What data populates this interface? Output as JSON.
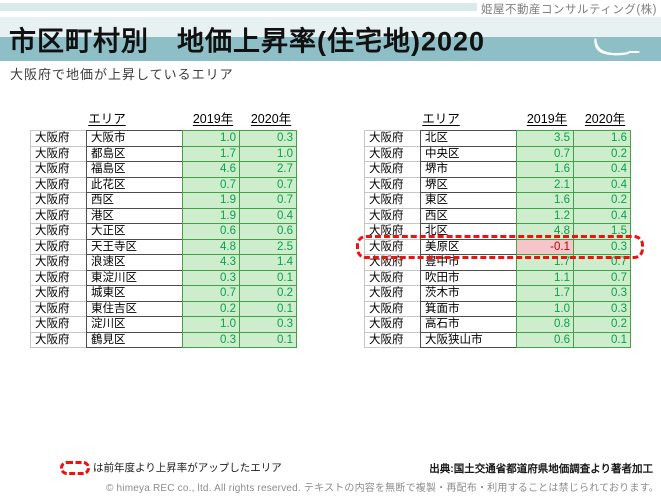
{
  "page": {
    "company": "姫屋不動産コンサルティング(株)",
    "title": "市区町村別　地価上昇率(住宅地)2020",
    "subtitle": "大阪府で地価が上昇しているエリア",
    "legend": "は前年度より上昇率がアップしたエリア",
    "source": "出典:国土交通省都道府県地価調査より著者加工",
    "copyright": "© himeya REC co., ltd. All rights reserved. テキストの内容を無断で複製・再配布・利用することは禁じられております。"
  },
  "colors": {
    "banner_teal": "#8fbfc6",
    "banner_light": "#e7f1f2",
    "top_strip": "#d9eaed",
    "cell_green_bg": "#cdedcd",
    "cell_green_text": "#0aa14b",
    "cell_green_border": "#43a047",
    "cell_negative_bg": "#f4c6c9",
    "cell_negative_text": "#c00000",
    "highlight_red": "#f01010"
  },
  "table_headers": {
    "area": "エリア",
    "y2019": "2019年",
    "y2020": "2020年"
  },
  "tables": [
    {
      "rows": [
        {
          "pref": "大阪府",
          "name": "大阪市",
          "v2019": "1.0",
          "v2020": "0.3"
        },
        {
          "pref": "大阪府",
          "name": "都島区",
          "v2019": "1.7",
          "v2020": "1.0"
        },
        {
          "pref": "大阪府",
          "name": "福島区",
          "v2019": "4.6",
          "v2020": "2.7"
        },
        {
          "pref": "大阪府",
          "name": "此花区",
          "v2019": "0.7",
          "v2020": "0.7"
        },
        {
          "pref": "大阪府",
          "name": "西区",
          "v2019": "1.9",
          "v2020": "0.7"
        },
        {
          "pref": "大阪府",
          "name": "港区",
          "v2019": "1.9",
          "v2020": "0.4"
        },
        {
          "pref": "大阪府",
          "name": "大正区",
          "v2019": "0.6",
          "v2020": "0.6"
        },
        {
          "pref": "大阪府",
          "name": "天王寺区",
          "v2019": "4.8",
          "v2020": "2.5"
        },
        {
          "pref": "大阪府",
          "name": "浪速区",
          "v2019": "4.3",
          "v2020": "1.4"
        },
        {
          "pref": "大阪府",
          "name": "東淀川区",
          "v2019": "0.3",
          "v2020": "0.1"
        },
        {
          "pref": "大阪府",
          "name": "城東区",
          "v2019": "0.7",
          "v2020": "0.2"
        },
        {
          "pref": "大阪府",
          "name": "東住吉区",
          "v2019": "0.2",
          "v2020": "0.1"
        },
        {
          "pref": "大阪府",
          "name": "淀川区",
          "v2019": "1.0",
          "v2020": "0.3"
        },
        {
          "pref": "大阪府",
          "name": "鶴見区",
          "v2019": "0.3",
          "v2020": "0.1"
        }
      ]
    },
    {
      "rows": [
        {
          "pref": "大阪府",
          "name": "北区",
          "v2019": "3.5",
          "v2020": "1.6"
        },
        {
          "pref": "大阪府",
          "name": "中央区",
          "v2019": "0.7",
          "v2020": "0.2"
        },
        {
          "pref": "大阪府",
          "name": "堺市",
          "v2019": "1.6",
          "v2020": "0.4"
        },
        {
          "pref": "大阪府",
          "name": "堺区",
          "v2019": "2.1",
          "v2020": "0.4"
        },
        {
          "pref": "大阪府",
          "name": "東区",
          "v2019": "1.6",
          "v2020": "0.2"
        },
        {
          "pref": "大阪府",
          "name": "西区",
          "v2019": "1.2",
          "v2020": "0.4"
        },
        {
          "pref": "大阪府",
          "name": "北区",
          "v2019": "4.8",
          "v2020": "1.5"
        },
        {
          "pref": "大阪府",
          "name": "美原区",
          "v2019": "-0.1",
          "v2020": "0.3",
          "highlight": true
        },
        {
          "pref": "大阪府",
          "name": "豊中市",
          "v2019": "1.7",
          "v2020": "0.7"
        },
        {
          "pref": "大阪府",
          "name": "吹田市",
          "v2019": "1.1",
          "v2020": "0.7"
        },
        {
          "pref": "大阪府",
          "name": "茨木市",
          "v2019": "1.7",
          "v2020": "0.3"
        },
        {
          "pref": "大阪府",
          "name": "箕面市",
          "v2019": "1.0",
          "v2020": "0.3"
        },
        {
          "pref": "大阪府",
          "name": "高石市",
          "v2019": "0.8",
          "v2020": "0.2"
        },
        {
          "pref": "大阪府",
          "name": "大阪狭山市",
          "v2019": "0.6",
          "v2020": "0.1"
        }
      ]
    }
  ]
}
